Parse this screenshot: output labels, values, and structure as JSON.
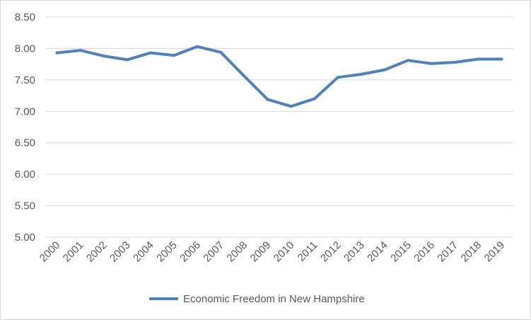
{
  "chart_data": {
    "type": "line",
    "title": "",
    "xlabel": "",
    "ylabel": "",
    "categories": [
      "2000",
      "2001",
      "2002",
      "2003",
      "2004",
      "2005",
      "2006",
      "2007",
      "2008",
      "2009",
      "2010",
      "2011",
      "2012",
      "2013",
      "2014",
      "2015",
      "2016",
      "2017",
      "2018",
      "2019"
    ],
    "series": [
      {
        "name": "Economic Freedom in New Hampshire",
        "color": "#4f81bd",
        "values": [
          7.93,
          7.97,
          7.88,
          7.82,
          7.93,
          7.89,
          8.03,
          7.94,
          7.56,
          7.19,
          7.08,
          7.2,
          7.54,
          7.59,
          7.66,
          7.81,
          7.76,
          7.78,
          7.83,
          7.83
        ]
      }
    ],
    "ylim": [
      5.0,
      8.5
    ],
    "yticks": [
      "5.00",
      "5.50",
      "6.00",
      "6.50",
      "7.00",
      "7.50",
      "8.00",
      "8.50"
    ],
    "grid": true,
    "legend_position": "bottom",
    "gridline_color": "#d9d9d9"
  }
}
